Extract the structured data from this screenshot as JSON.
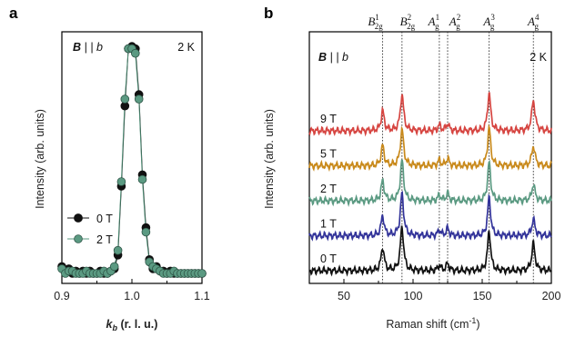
{
  "panel_a": {
    "label": "a",
    "field_label_b": "B",
    "field_label_rest": " | | b",
    "temperature": "2 K",
    "ylabel": "Intensity (arb. units)",
    "xlabel_k": "k",
    "xlabel_sub": "b",
    "xlabel_rest": " (r. l. u.)",
    "xticks": [
      "0.9",
      "1.0",
      "1.1"
    ],
    "legend": [
      "0 T",
      "2 T"
    ]
  },
  "panel_b": {
    "label": "b",
    "field_label_b": "B",
    "field_label_rest": " | | b",
    "temperature": "2 K",
    "ylabel": "Intensity (arb. units)",
    "xlabel": "Raman shift (cm",
    "xlabel_sup": "-1",
    "xlabel_close": ")",
    "xticks": [
      "50",
      "100",
      "150",
      "200"
    ],
    "mode_labels": [
      {
        "base": "B",
        "sup": "1",
        "sub": "2g"
      },
      {
        "base": "B",
        "sup": "2",
        "sub": "2g"
      },
      {
        "base": "A",
        "sup": "1",
        "sub": "g"
      },
      {
        "base": "A",
        "sup": "2",
        "sub": "g"
      },
      {
        "base": "A",
        "sup": "3",
        "sub": "g"
      },
      {
        "base": "A",
        "sup": "4",
        "sub": "g"
      }
    ],
    "trace_labels": [
      "9 T",
      "5 T",
      "2 T",
      "1 T",
      "0 T"
    ]
  },
  "chart_data": [
    {
      "type": "scatter",
      "xlim": [
        0.9,
        1.1
      ],
      "xticks": [
        0.9,
        1.0,
        1.1
      ],
      "ylim": [
        0,
        1.05
      ],
      "y_tick_labels_shown": false,
      "legend_placement": "lower-left",
      "series": [
        {
          "name": "0 T",
          "color": "#111111",
          "marker": "filled-circle",
          "x": [
            0.9,
            0.905,
            0.91,
            0.915,
            0.92,
            0.925,
            0.93,
            0.935,
            0.94,
            0.945,
            0.95,
            0.955,
            0.96,
            0.965,
            0.97,
            0.975,
            0.98,
            0.985,
            0.99,
            0.995,
            1.0,
            1.005,
            1.01,
            1.015,
            1.02,
            1.025,
            1.03,
            1.035,
            1.04,
            1.045,
            1.05,
            1.055,
            1.06,
            1.065,
            1.07,
            1.075,
            1.08,
            1.085,
            1.09,
            1.095,
            1.1
          ],
          "y": [
            0.05,
            0.03,
            0.04,
            0.02,
            0.03,
            0.02,
            0.03,
            0.02,
            0.03,
            0.02,
            0.02,
            0.03,
            0.02,
            0.02,
            0.03,
            0.04,
            0.1,
            0.4,
            0.75,
            1.0,
            1.01,
            1.0,
            0.8,
            0.45,
            0.22,
            0.08,
            0.04,
            0.05,
            0.03,
            0.03,
            0.02,
            0.03,
            0.02,
            0.02,
            0.02,
            0.02,
            0.02,
            0.02,
            0.02,
            0.02,
            0.02
          ]
        },
        {
          "name": "2 T",
          "color": "#5b9a82",
          "marker": "filled-circle",
          "x": [
            0.9,
            0.905,
            0.91,
            0.915,
            0.92,
            0.925,
            0.93,
            0.935,
            0.94,
            0.945,
            0.95,
            0.955,
            0.96,
            0.965,
            0.97,
            0.975,
            0.98,
            0.985,
            0.99,
            0.995,
            1.0,
            1.005,
            1.01,
            1.015,
            1.02,
            1.025,
            1.03,
            1.035,
            1.04,
            1.045,
            1.05,
            1.055,
            1.06,
            1.065,
            1.07,
            1.075,
            1.08,
            1.085,
            1.09,
            1.095,
            1.1
          ],
          "y": [
            0.04,
            0.02,
            0.03,
            0.03,
            0.02,
            0.02,
            0.02,
            0.03,
            0.02,
            0.02,
            0.02,
            0.02,
            0.03,
            0.02,
            0.03,
            0.05,
            0.12,
            0.42,
            0.78,
            1.0,
            1.0,
            0.98,
            0.78,
            0.43,
            0.2,
            0.07,
            0.05,
            0.04,
            0.03,
            0.02,
            0.02,
            0.02,
            0.03,
            0.02,
            0.02,
            0.02,
            0.02,
            0.02,
            0.02,
            0.02,
            0.02
          ]
        }
      ]
    },
    {
      "type": "line",
      "xlim": [
        25,
        200
      ],
      "xticks": [
        50,
        100,
        150,
        200
      ],
      "y_tick_labels_shown": false,
      "mode_positions": [
        78,
        92,
        119,
        125,
        155,
        187
      ],
      "series": [
        {
          "name": "9 T",
          "color": "#d64541",
          "offset": 4,
          "peaks": [
            [
              78,
              0.55
            ],
            [
              92,
              1.0
            ],
            [
              119,
              0.15
            ],
            [
              125,
              0.2
            ],
            [
              155,
              1.05
            ],
            [
              187,
              0.85
            ]
          ]
        },
        {
          "name": "5 T",
          "color": "#c98a1c",
          "offset": 3,
          "peaks": [
            [
              78,
              0.55
            ],
            [
              92,
              1.0
            ],
            [
              119,
              0.15
            ],
            [
              125,
              0.2
            ],
            [
              155,
              1.05
            ],
            [
              187,
              0.55
            ]
          ]
        },
        {
          "name": "2 T",
          "color": "#5b9a82",
          "offset": 2,
          "peaks": [
            [
              78,
              0.55
            ],
            [
              92,
              1.1
            ],
            [
              119,
              0.15
            ],
            [
              125,
              0.2
            ],
            [
              155,
              1.05
            ],
            [
              187,
              0.45
            ]
          ]
        },
        {
          "name": "1 T",
          "color": "#33349a",
          "offset": 1,
          "peaks": [
            [
              78,
              0.55
            ],
            [
              92,
              1.15
            ],
            [
              119,
              0.15
            ],
            [
              125,
              0.2
            ],
            [
              155,
              1.05
            ],
            [
              187,
              0.45
            ]
          ]
        },
        {
          "name": "0 T",
          "color": "#111111",
          "offset": 0,
          "peaks": [
            [
              78,
              0.65
            ],
            [
              92,
              1.2
            ],
            [
              119,
              0.15
            ],
            [
              125,
              0.2
            ],
            [
              155,
              1.1
            ],
            [
              187,
              0.75
            ]
          ]
        }
      ]
    }
  ]
}
